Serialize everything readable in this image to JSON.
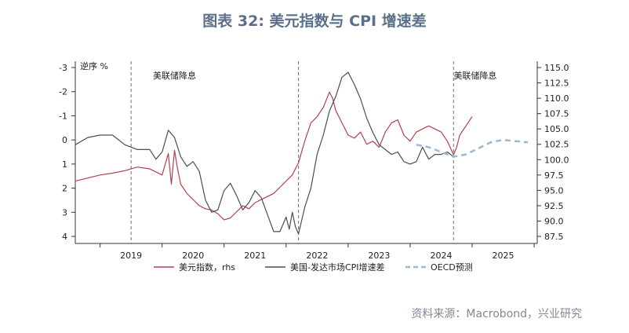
{
  "title": "图表 32: 美元指数与 CPI 增速差",
  "source": "资料来源：Macrobond，兴业研究",
  "chart_data": {
    "type": "line",
    "left_axis_label": "逆序 %",
    "left_axis": {
      "inverted": true,
      "ticks": [
        "-3",
        "-2",
        "-1",
        "0",
        "1",
        "2",
        "3",
        "4"
      ],
      "range": [
        -3,
        4
      ]
    },
    "right_axis": {
      "ticks": [
        "115.0",
        "112.5",
        "110.0",
        "107.5",
        "105.0",
        "102.5",
        "100.0",
        "97.5",
        "95.0",
        "92.5",
        "90.0",
        "87.5"
      ],
      "range": [
        87.5,
        115
      ]
    },
    "x_axis": {
      "labels": [
        "2019",
        "2020",
        "2021",
        "2022",
        "2023",
        "2024",
        "2025"
      ],
      "range": [
        2018.6,
        2026.05
      ]
    },
    "annotations": [
      {
        "text": "美联储降息",
        "x": 2020.2
      },
      {
        "text": "美联储降息",
        "x": 2025.05
      }
    ],
    "vlines": [
      2019.5,
      2022.2,
      2024.7
    ],
    "series": [
      {
        "name": "美元指数，rhs",
        "axis": "right",
        "color": "#b5404a",
        "x": [
          2018.6,
          2018.8,
          2019.0,
          2019.2,
          2019.4,
          2019.6,
          2019.8,
          2019.9,
          2020.0,
          2020.1,
          2020.15,
          2020.2,
          2020.25,
          2020.3,
          2020.4,
          2020.5,
          2020.6,
          2020.7,
          2020.8,
          2020.9,
          2021.0,
          2021.1,
          2021.2,
          2021.3,
          2021.4,
          2021.5,
          2021.6,
          2021.7,
          2021.8,
          2021.9,
          2022.0,
          2022.1,
          2022.2,
          2022.3,
          2022.4,
          2022.5,
          2022.6,
          2022.7,
          2022.75,
          2022.8,
          2022.9,
          2023.0,
          2023.1,
          2023.2,
          2023.3,
          2023.4,
          2023.5,
          2023.6,
          2023.7,
          2023.8,
          2023.9,
          2024.0,
          2024.1,
          2024.2,
          2024.3,
          2024.4,
          2024.5,
          2024.6,
          2024.7,
          2024.75,
          2024.8,
          2024.9,
          2025.0
        ],
        "values": [
          96.5,
          97.0,
          97.5,
          97.8,
          98.2,
          98.8,
          98.5,
          98.0,
          97.5,
          101.0,
          96.0,
          101.5,
          98.5,
          96.0,
          94.5,
          93.5,
          92.5,
          92.0,
          91.8,
          91.2,
          90.2,
          90.5,
          91.5,
          92.5,
          92.0,
          93.0,
          93.5,
          94.0,
          94.5,
          95.5,
          96.5,
          97.5,
          99.5,
          103.0,
          106.0,
          107.0,
          108.5,
          111.0,
          110.0,
          108.0,
          106.0,
          104.0,
          103.5,
          104.5,
          102.5,
          103.0,
          102.0,
          104.5,
          106.0,
          106.5,
          104.0,
          103.0,
          104.5,
          105.0,
          105.5,
          105.0,
          104.5,
          103.0,
          100.8,
          102.0,
          104.0,
          105.5,
          107.0
        ]
      },
      {
        "name": "美国-发达市场CPI增速差",
        "axis": "left",
        "color": "#4a4d52",
        "x": [
          2018.6,
          2018.8,
          2019.0,
          2019.2,
          2019.4,
          2019.6,
          2019.8,
          2019.9,
          2020.0,
          2020.1,
          2020.2,
          2020.3,
          2020.4,
          2020.5,
          2020.6,
          2020.7,
          2020.8,
          2020.9,
          2021.0,
          2021.1,
          2021.2,
          2021.3,
          2021.4,
          2021.5,
          2021.6,
          2021.7,
          2021.8,
          2021.9,
          2022.0,
          2022.05,
          2022.1,
          2022.15,
          2022.2,
          2022.3,
          2022.4,
          2022.5,
          2022.6,
          2022.7,
          2022.8,
          2022.9,
          2023.0,
          2023.1,
          2023.2,
          2023.3,
          2023.4,
          2023.5,
          2023.6,
          2023.7,
          2023.8,
          2023.9,
          2024.0,
          2024.1,
          2024.2,
          2024.3,
          2024.4,
          2024.5,
          2024.6,
          2024.7
        ],
        "values": [
          0.2,
          -0.1,
          -0.2,
          -0.2,
          0.2,
          0.4,
          0.4,
          0.8,
          0.5,
          -0.4,
          -0.1,
          0.7,
          1.1,
          0.9,
          1.3,
          2.5,
          3.0,
          2.9,
          2.1,
          1.8,
          2.3,
          2.9,
          2.6,
          2.1,
          2.4,
          3.1,
          3.8,
          3.8,
          3.2,
          3.7,
          3.0,
          3.6,
          3.9,
          2.8,
          2.0,
          0.6,
          -0.2,
          -1.2,
          -1.8,
          -2.6,
          -2.8,
          -2.3,
          -1.7,
          -0.9,
          -0.3,
          0.2,
          0.4,
          0.6,
          0.5,
          0.9,
          1.0,
          0.9,
          0.3,
          0.8,
          0.6,
          0.6,
          0.5,
          0.7
        ]
      },
      {
        "name": "OECD预测",
        "axis": "left",
        "color": "#9bb8d3",
        "dashed": true,
        "x": [
          2024.1,
          2024.3,
          2024.5,
          2024.7,
          2024.9,
          2025.1,
          2025.3,
          2025.5,
          2025.7,
          2025.9
        ],
        "values": [
          0.2,
          0.3,
          0.5,
          0.7,
          0.6,
          0.35,
          0.1,
          0.0,
          0.05,
          0.1
        ]
      }
    ]
  }
}
